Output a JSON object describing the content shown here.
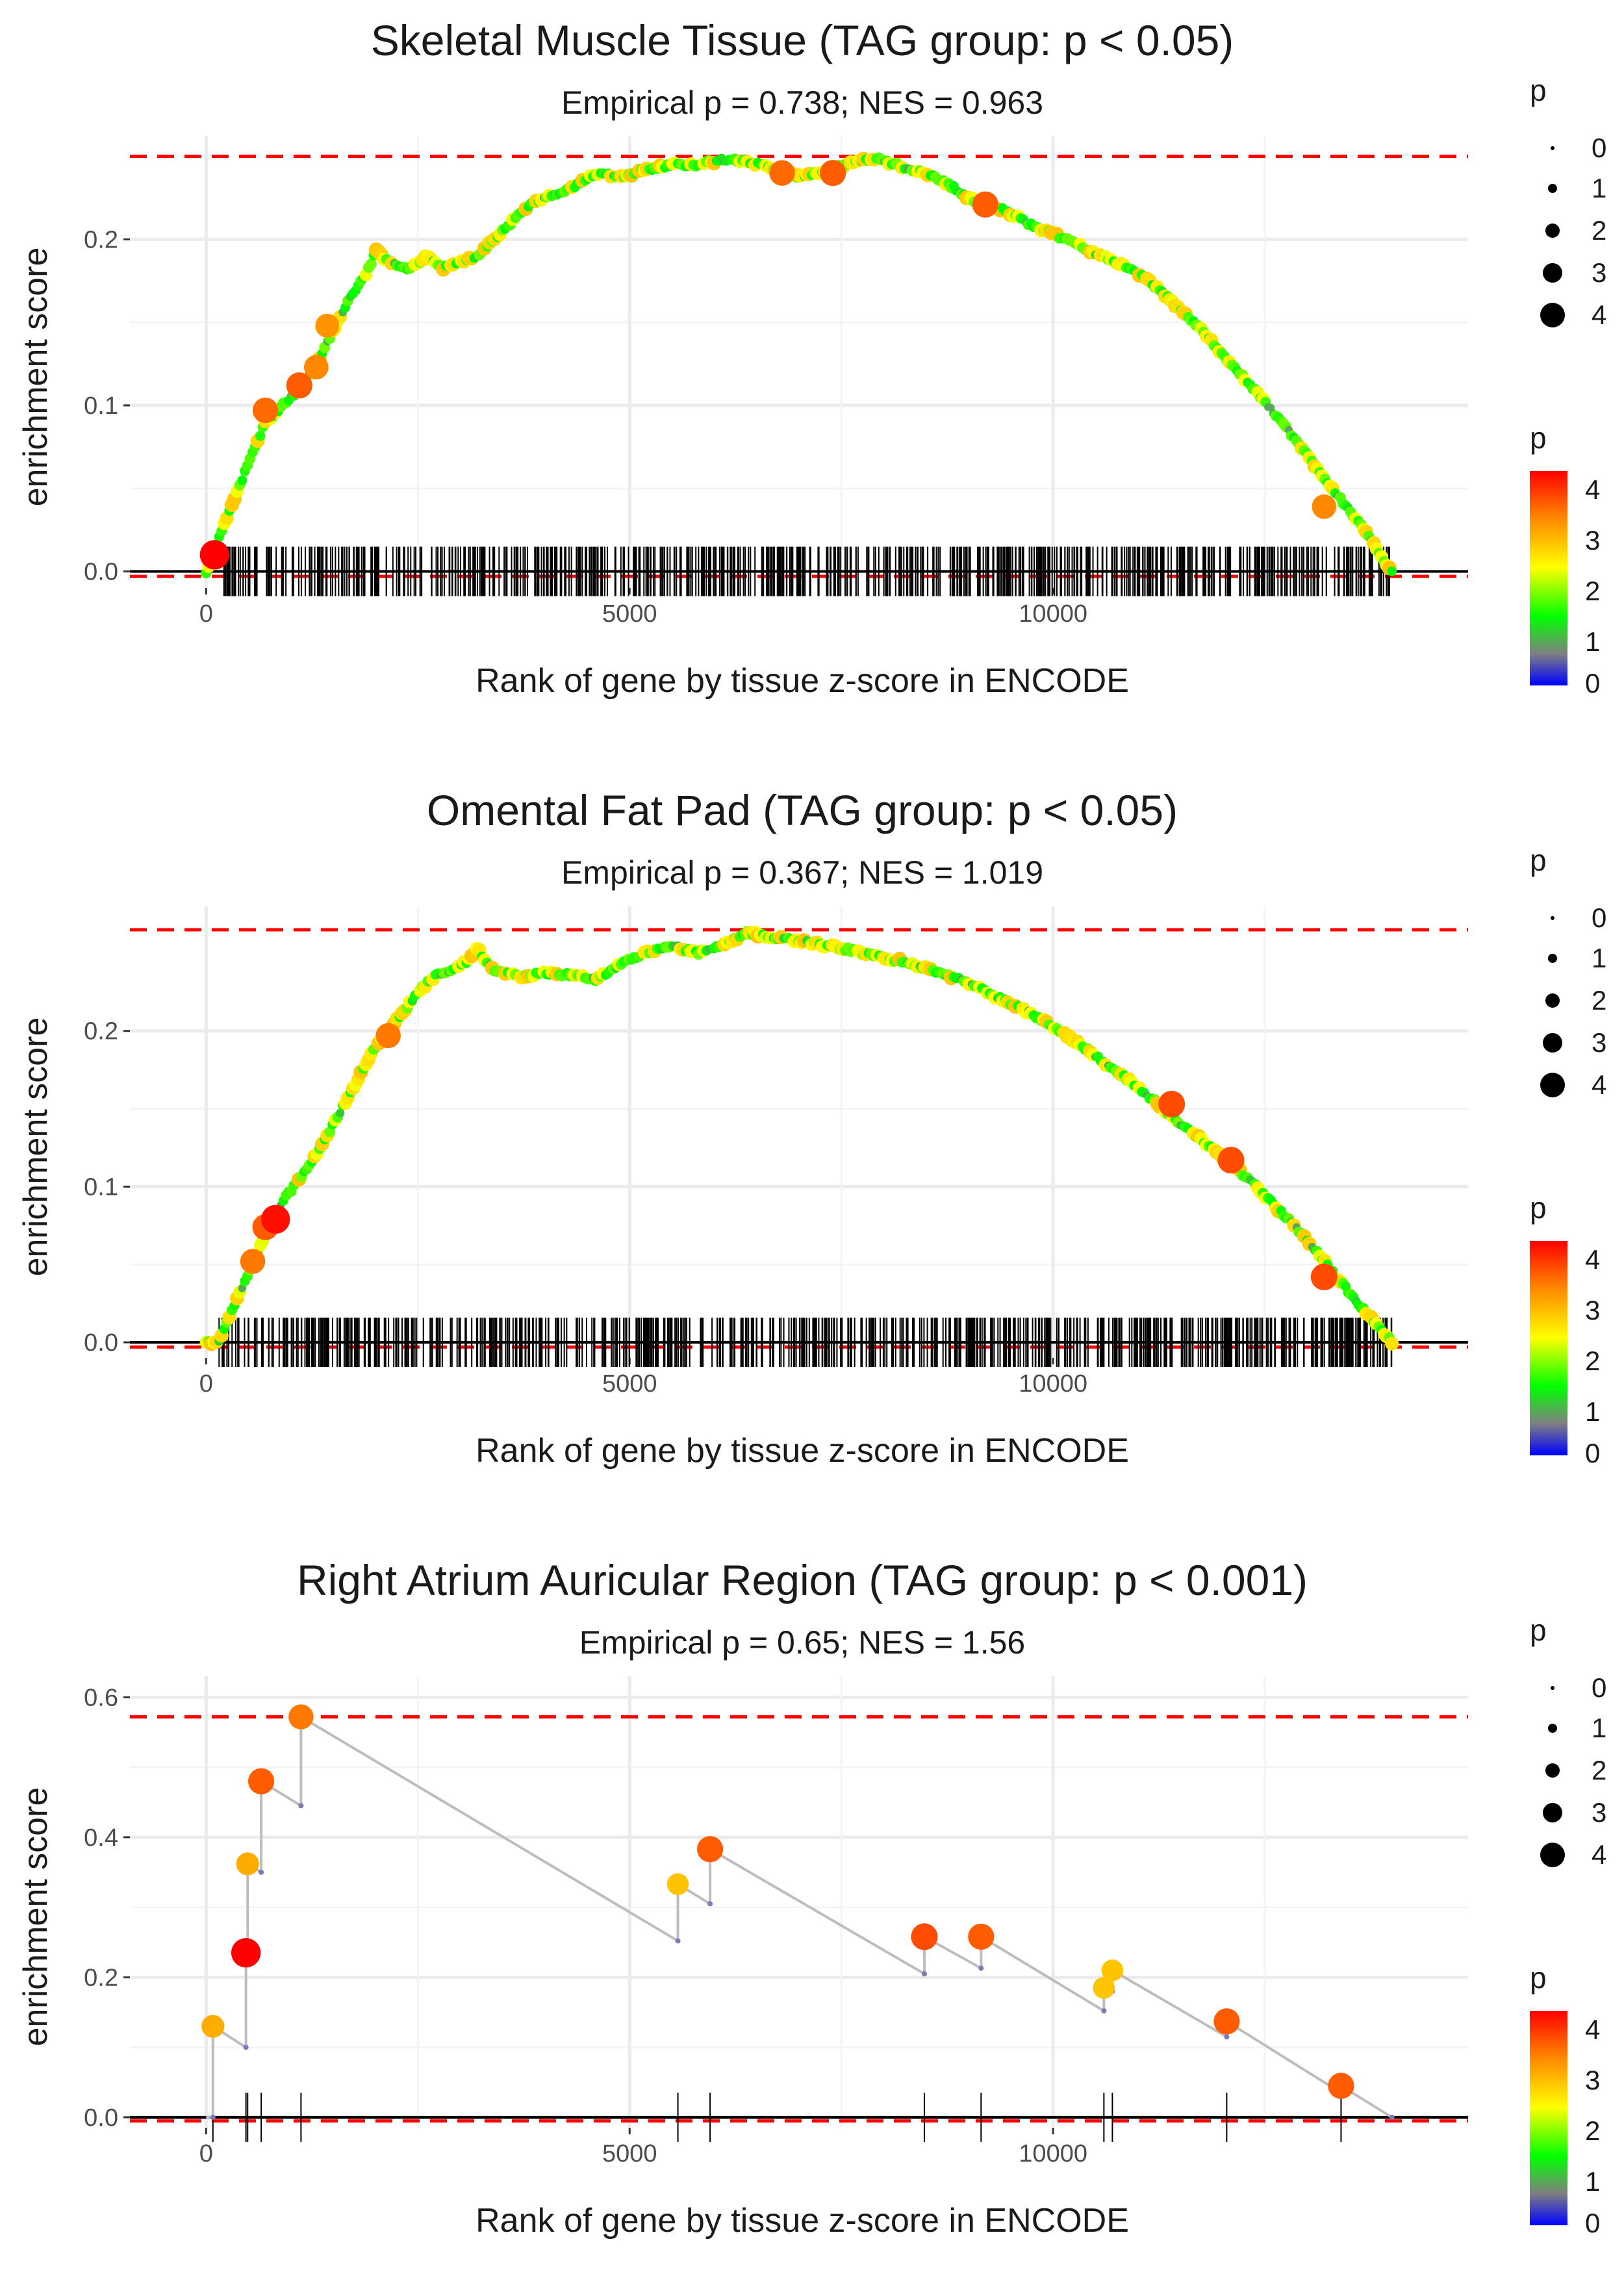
{
  "chart_data": [
    {
      "type": "line",
      "title": "Skeletal Muscle Tissue (TAG group: p < 0.05)",
      "subtitle": "Empirical p = 0.738; NES = 0.963",
      "xlabel": "Rank of gene by tissue z-score in ENCODE",
      "ylabel": "enrichment score",
      "xlim": [
        -900,
        14900
      ],
      "ylim": [
        -0.01,
        0.262
      ],
      "xticks": [
        0,
        5000,
        10000
      ],
      "xtick_labels": [
        "0",
        "5000",
        "10000"
      ],
      "yticks": [
        0.0,
        0.1,
        0.2
      ],
      "ytick_labels": [
        "0.0",
        "0.1",
        "0.2"
      ],
      "ref_upper": 0.25,
      "ref_lower": -0.003,
      "x_max": 14000,
      "n_hits": 700,
      "curve": {
        "x": [
          0,
          150,
          300,
          500,
          700,
          900,
          1100,
          1300,
          1500,
          1700,
          1900,
          2000,
          2200,
          2400,
          2600,
          2800,
          3000,
          3200,
          3400,
          3600,
          3800,
          4000,
          4300,
          4600,
          4900,
          5200,
          5500,
          5800,
          6100,
          6400,
          6700,
          7000,
          7300,
          7600,
          7900,
          8200,
          8500,
          8800,
          9100,
          9400,
          9700,
          10000,
          10300,
          10600,
          10900,
          11200,
          11500,
          11800,
          12100,
          12400,
          12700,
          13000,
          13300,
          13600,
          14000
        ],
        "y": [
          0.0,
          0.02,
          0.04,
          0.065,
          0.09,
          0.1,
          0.11,
          0.125,
          0.145,
          0.165,
          0.18,
          0.193,
          0.185,
          0.182,
          0.19,
          0.183,
          0.186,
          0.19,
          0.2,
          0.21,
          0.22,
          0.225,
          0.23,
          0.24,
          0.238,
          0.242,
          0.245,
          0.245,
          0.248,
          0.247,
          0.242,
          0.238,
          0.24,
          0.246,
          0.249,
          0.244,
          0.24,
          0.232,
          0.222,
          0.218,
          0.21,
          0.203,
          0.197,
          0.189,
          0.183,
          0.172,
          0.158,
          0.143,
          0.125,
          0.108,
          0.09,
          0.07,
          0.05,
          0.03,
          0.0
        ]
      },
      "highlight_points": [
        {
          "x": 100,
          "y": 0.01,
          "p": 4.2
        },
        {
          "x": 700,
          "y": 0.097,
          "p": 3.5
        },
        {
          "x": 1100,
          "y": 0.112,
          "p": 3.6
        },
        {
          "x": 1300,
          "y": 0.123,
          "p": 3.3
        },
        {
          "x": 1430,
          "y": 0.148,
          "p": 3.2
        },
        {
          "x": 6800,
          "y": 0.24,
          "p": 3.5
        },
        {
          "x": 7400,
          "y": 0.24,
          "p": 3.6
        },
        {
          "x": 9200,
          "y": 0.221,
          "p": 3.6
        },
        {
          "x": 13200,
          "y": 0.039,
          "p": 3.3
        }
      ],
      "legend_size": {
        "title": "p",
        "values": [
          "0",
          "1",
          "2",
          "3",
          "4"
        ]
      },
      "legend_color": {
        "title": "p",
        "labels": [
          "4",
          "3",
          "2",
          "1",
          "0"
        ],
        "colors": [
          "#ff0000",
          "#ff8800",
          "#ffff00",
          "#00ff00",
          "#808080",
          "#0000ff"
        ]
      }
    },
    {
      "type": "line",
      "title": "Omental Fat Pad (TAG group: p < 0.05)",
      "subtitle": "Empirical p = 0.367; NES = 1.019",
      "xlabel": "Rank of gene by tissue z-score in ENCODE",
      "ylabel": "enrichment score",
      "xlim": [
        -900,
        14900
      ],
      "ylim": [
        -0.01,
        0.28
      ],
      "xticks": [
        0,
        5000,
        10000
      ],
      "xtick_labels": [
        "0",
        "5000",
        "10000"
      ],
      "yticks": [
        0.0,
        0.1,
        0.2
      ],
      "ytick_labels": [
        "0.0",
        "0.1",
        "0.2"
      ],
      "ref_upper": 0.265,
      "ref_lower": -0.003,
      "x_max": 14000,
      "n_hits": 700,
      "curve": {
        "x": [
          0,
          150,
          300,
          500,
          700,
          900,
          1100,
          1300,
          1500,
          1700,
          1900,
          2100,
          2300,
          2500,
          2700,
          2900,
          3100,
          3200,
          3400,
          3700,
          4000,
          4300,
          4600,
          4900,
          5200,
          5500,
          5800,
          6100,
          6400,
          6700,
          7000,
          7300,
          7600,
          7900,
          8200,
          8500,
          8800,
          9100,
          9400,
          9700,
          10000,
          10300,
          10600,
          10900,
          11200,
          11500,
          11800,
          12100,
          12400,
          12700,
          13000,
          13300,
          13600,
          14000
        ],
        "y": [
          0.0,
          0.0,
          0.02,
          0.045,
          0.07,
          0.09,
          0.105,
          0.12,
          0.14,
          0.16,
          0.18,
          0.198,
          0.21,
          0.225,
          0.235,
          0.24,
          0.245,
          0.253,
          0.238,
          0.235,
          0.237,
          0.236,
          0.233,
          0.243,
          0.25,
          0.255,
          0.25,
          0.255,
          0.263,
          0.26,
          0.258,
          0.255,
          0.252,
          0.248,
          0.245,
          0.24,
          0.235,
          0.228,
          0.22,
          0.212,
          0.203,
          0.192,
          0.18,
          0.168,
          0.155,
          0.14,
          0.128,
          0.115,
          0.1,
          0.083,
          0.066,
          0.045,
          0.025,
          0.0
        ]
      },
      "highlight_points": [
        {
          "x": 550,
          "y": 0.052,
          "p": 3.4
        },
        {
          "x": 700,
          "y": 0.074,
          "p": 3.6
        },
        {
          "x": 820,
          "y": 0.079,
          "p": 4.1
        },
        {
          "x": 2150,
          "y": 0.197,
          "p": 3.4
        },
        {
          "x": 11400,
          "y": 0.153,
          "p": 3.7
        },
        {
          "x": 12100,
          "y": 0.117,
          "p": 3.7
        },
        {
          "x": 13200,
          "y": 0.042,
          "p": 3.7
        }
      ],
      "legend_size": {
        "title": "p",
        "values": [
          "0",
          "1",
          "2",
          "3",
          "4"
        ]
      },
      "legend_color": {
        "title": "p",
        "labels": [
          "4",
          "3",
          "2",
          "1",
          "0"
        ],
        "colors": [
          "#ff0000",
          "#ff8800",
          "#ffff00",
          "#00ff00",
          "#808080",
          "#0000ff"
        ]
      }
    },
    {
      "type": "line",
      "title": "Right Atrium Auricular Region (TAG group: p < 0.001)",
      "subtitle": "Empirical p = 0.65; NES = 1.56",
      "xlabel": "Rank of gene by tissue z-score in ENCODE",
      "ylabel": "enrichment score",
      "xlim": [
        -900,
        14900
      ],
      "ylim": [
        -0.015,
        0.63
      ],
      "xticks": [
        0,
        5000,
        10000
      ],
      "xtick_labels": [
        "0",
        "5000",
        "10000"
      ],
      "yticks": [
        0.0,
        0.2,
        0.4,
        0.6
      ],
      "ytick_labels": [
        "0.0",
        "0.2",
        "0.4",
        "0.6"
      ],
      "ref_upper": 0.572,
      "ref_lower": -0.005,
      "x_max": 14000,
      "steps": [
        {
          "x": 80,
          "before": 0.0,
          "after": 0.13,
          "p": 3.0
        },
        {
          "x": 470,
          "before": 0.1,
          "after": 0.235,
          "p": 4.2
        },
        {
          "x": 490,
          "before": 0.23,
          "after": 0.362,
          "p": 3.0
        },
        {
          "x": 650,
          "before": 0.35,
          "after": 0.48,
          "p": 3.6
        },
        {
          "x": 1120,
          "before": 0.445,
          "after": 0.572,
          "p": 3.4
        },
        {
          "x": 5570,
          "before": 0.252,
          "after": 0.333,
          "p": 2.8
        },
        {
          "x": 5950,
          "before": 0.305,
          "after": 0.383,
          "p": 3.6
        },
        {
          "x": 8480,
          "before": 0.205,
          "after": 0.258,
          "p": 3.7
        },
        {
          "x": 9150,
          "before": 0.213,
          "after": 0.258,
          "p": 3.6
        },
        {
          "x": 10600,
          "before": 0.152,
          "after": 0.185,
          "p": 2.8
        },
        {
          "x": 10700,
          "before": 0.18,
          "after": 0.21,
          "p": 2.8
        },
        {
          "x": 12050,
          "before": 0.115,
          "after": 0.137,
          "p": 3.6
        },
        {
          "x": 13400,
          "before": 0.035,
          "after": 0.045,
          "p": 3.6
        }
      ],
      "legend_size": {
        "title": "p",
        "values": [
          "0",
          "1",
          "2",
          "3",
          "4"
        ]
      },
      "legend_color": {
        "title": "p",
        "labels": [
          "4",
          "3",
          "2",
          "1",
          "0"
        ],
        "colors": [
          "#ff0000",
          "#ff8800",
          "#ffff00",
          "#00ff00",
          "#808080",
          "#0000ff"
        ]
      }
    }
  ]
}
